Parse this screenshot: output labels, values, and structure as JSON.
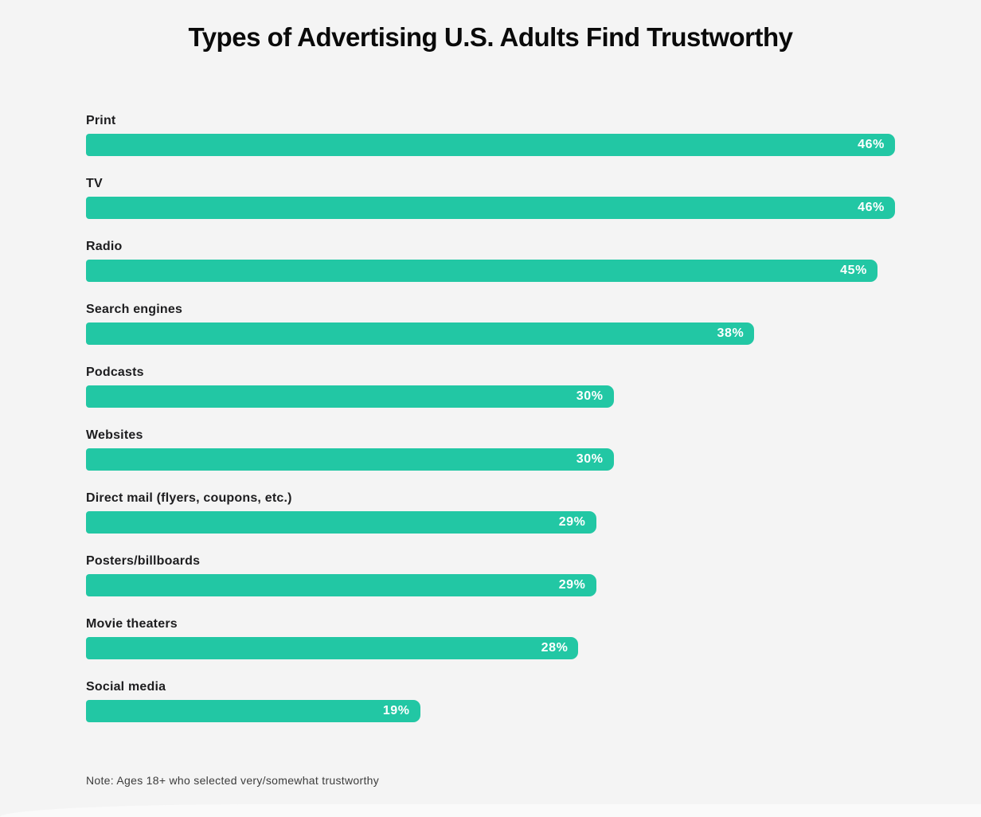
{
  "page": {
    "background": "#f4f4f4"
  },
  "chart_data": {
    "type": "bar",
    "orientation": "horizontal",
    "title": "Types of Advertising U.S. Adults Find Trustworthy",
    "note": "Note: Ages 18+ who selected very/somewhat trustworthy",
    "categories": [
      "Print",
      "TV",
      "Radio",
      "Search engines",
      "Podcasts",
      "Websites",
      "Direct mail (flyers, coupons, etc.)",
      "Posters/billboards",
      "Movie theaters",
      "Social media"
    ],
    "values": [
      46,
      46,
      45,
      38,
      30,
      30,
      29,
      29,
      28,
      19
    ],
    "value_labels": [
      "46%",
      "46%",
      "45%",
      "38%",
      "30%",
      "30%",
      "29%",
      "29%",
      "28%",
      "19%"
    ],
    "value_suffix": "%",
    "xlim": [
      0,
      46
    ],
    "grid": false,
    "legend": "none",
    "bar_color": "#22c7a4",
    "value_label_color": "#ffffff",
    "category_label_color": "#1d1d1f",
    "background": "#f4f4f4"
  }
}
